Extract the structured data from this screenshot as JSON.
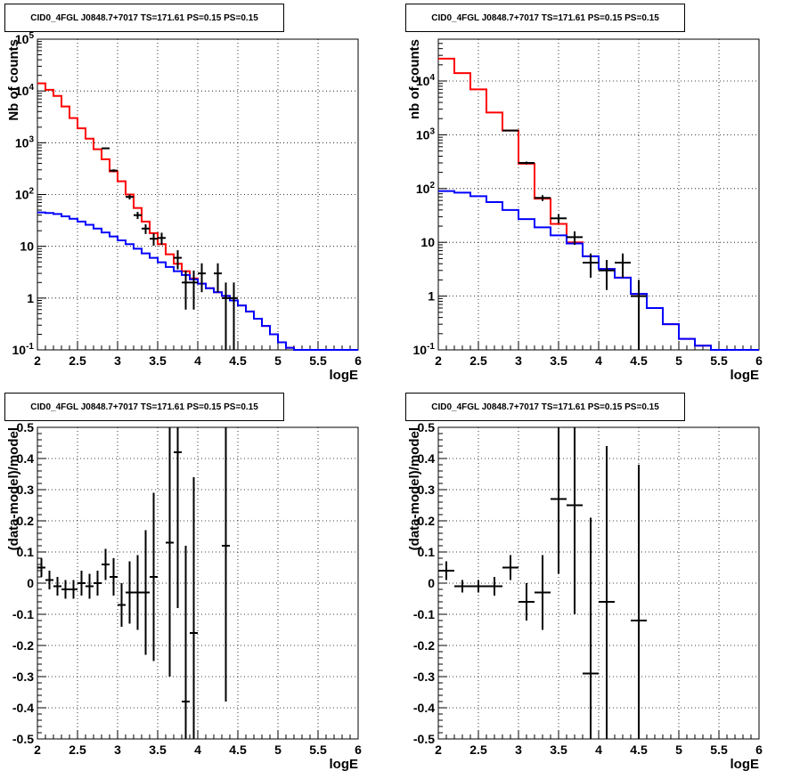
{
  "chart_data": [
    {
      "type": "line",
      "title": "CID0_4FGL J0848.7+7017 TS=171.61 PS=0.15 PS=0.15",
      "xlabel": "logE",
      "ylabel": "Nb of counts",
      "xlim": [
        2,
        6
      ],
      "ylim": [
        0.1,
        100000
      ],
      "yscale": "log",
      "grid": true,
      "x_ticks": [
        "2",
        "2.5",
        "3",
        "3.5",
        "4",
        "4.5",
        "5",
        "5.5",
        "6"
      ],
      "y_ticks": [
        "10^-1",
        "1",
        "10",
        "10^2",
        "10^3",
        "10^4",
        "10^5"
      ],
      "series": [
        {
          "color": "#ff0000",
          "style": "step",
          "bin_width": 0.1,
          "x": [
            2.05,
            2.15,
            2.25,
            2.35,
            2.45,
            2.55,
            2.65,
            2.75,
            2.85,
            2.95,
            3.05,
            3.15,
            3.25,
            3.35,
            3.45,
            3.55,
            3.65,
            3.75,
            3.85,
            3.95,
            4.05,
            4.15,
            4.25,
            4.35,
            4.45,
            4.55,
            4.65,
            4.75,
            4.85,
            4.95,
            5.05,
            5.15,
            5.25,
            5.35,
            5.45,
            5.55,
            5.65,
            5.75,
            5.85,
            5.95
          ],
          "values": [
            14000,
            10500,
            8000,
            5000,
            3000,
            1900,
            1200,
            750,
            480,
            280,
            180,
            100,
            55,
            30,
            18,
            11,
            7,
            4.6,
            3.3,
            2.4,
            1.9,
            1.55,
            1.3,
            1.1,
            0.9,
            0.72,
            0.55,
            0.4,
            0.29,
            0.2,
            0.14,
            0.11,
            0.1,
            0.1,
            0.1,
            0.1,
            0.1,
            0.1,
            0.1,
            0.1
          ]
        },
        {
          "color": "#0000ff",
          "style": "step",
          "bin_width": 0.1,
          "x": [
            2.05,
            2.15,
            2.25,
            2.35,
            2.45,
            2.55,
            2.65,
            2.75,
            2.85,
            2.95,
            3.05,
            3.15,
            3.25,
            3.35,
            3.45,
            3.55,
            3.65,
            3.75,
            3.85,
            3.95,
            4.05,
            4.15,
            4.25,
            4.35,
            4.45,
            4.55,
            4.65,
            4.75,
            4.85,
            4.95,
            5.05,
            5.15,
            5.25,
            5.35,
            5.45,
            5.55,
            5.65,
            5.75,
            5.85,
            5.95
          ],
          "values": [
            45,
            44,
            42,
            38,
            34,
            30,
            26,
            22,
            18.5,
            15.5,
            13,
            11,
            9,
            7.3,
            6,
            4.9,
            4,
            3.3,
            2.8,
            2.3,
            1.9,
            1.55,
            1.3,
            1.1,
            0.9,
            0.72,
            0.55,
            0.4,
            0.29,
            0.2,
            0.14,
            0.11,
            0.1,
            0.1,
            0.1,
            0.1,
            0.1,
            0.1,
            0.1,
            0.1
          ]
        },
        {
          "color": "#000000",
          "style": "errorbar",
          "x_err": 0.05,
          "x": [
            2.85,
            2.95,
            3.15,
            3.25,
            3.35,
            3.45,
            3.55,
            3.75,
            3.85,
            3.95,
            4.05,
            4.25,
            4.35,
            4.45
          ],
          "values": [
            780,
            290,
            90,
            40,
            22,
            14,
            14.5,
            6,
            2,
            2,
            3,
            3,
            1,
            1
          ],
          "err_low": [
            28,
            17,
            9.5,
            6.3,
            4.7,
            3.7,
            3.8,
            2.4,
            1.4,
            1.4,
            1.7,
            1.7,
            1,
            1
          ],
          "err_high": [
            28,
            17,
            9.5,
            6.3,
            4.7,
            3.7,
            3.8,
            2.4,
            1.4,
            1.4,
            1.7,
            1.7,
            1,
            1
          ]
        }
      ]
    },
    {
      "type": "line",
      "title": "CID0_4FGL J0848.7+7017 TS=171.61 PS=0.15 PS=0.15",
      "xlabel": "logE",
      "ylabel": "nb of counts",
      "xlim": [
        2,
        6
      ],
      "ylim": [
        0.1,
        60000
      ],
      "yscale": "log",
      "grid": true,
      "x_ticks": [
        "2",
        "2.5",
        "3",
        "3.5",
        "4",
        "4.5",
        "5",
        "5.5",
        "6"
      ],
      "y_ticks": [
        "10^-1",
        "1",
        "10",
        "10^2",
        "10^3",
        "10^4"
      ],
      "series": [
        {
          "color": "#ff0000",
          "style": "step",
          "bin_width": 0.2,
          "x": [
            2.1,
            2.3,
            2.5,
            2.7,
            2.9,
            3.1,
            3.3,
            3.5,
            3.7,
            3.9,
            4.1,
            4.3,
            4.5,
            4.7,
            4.9,
            5.1,
            5.3,
            5.5,
            5.7,
            5.9
          ],
          "values": [
            26000,
            14000,
            7000,
            2600,
            1200,
            290,
            65,
            22,
            10,
            5.5,
            3.2,
            2.2,
            1.1,
            0.6,
            0.3,
            0.16,
            0.12,
            0.1,
            0.1,
            0.1
          ]
        },
        {
          "color": "#0000ff",
          "style": "step",
          "bin_width": 0.2,
          "x": [
            2.1,
            2.3,
            2.5,
            2.7,
            2.9,
            3.1,
            3.3,
            3.5,
            3.7,
            3.9,
            4.1,
            4.3,
            4.5,
            4.7,
            4.9,
            5.1,
            5.3,
            5.5,
            5.7,
            5.9
          ],
          "values": [
            90,
            84,
            72,
            56,
            40,
            27,
            19,
            13.5,
            9.5,
            5.5,
            3.2,
            2.2,
            1.1,
            0.6,
            0.3,
            0.16,
            0.12,
            0.1,
            0.1,
            0.1
          ]
        },
        {
          "color": "#000000",
          "style": "errorbar",
          "x_err": 0.1,
          "x": [
            2.9,
            3.1,
            3.3,
            3.5,
            3.7,
            3.9,
            4.1,
            4.3,
            4.5
          ],
          "values": [
            1200,
            300,
            67,
            28,
            12.5,
            4.2,
            3,
            4.2,
            1
          ],
          "err_low": [
            35,
            17,
            8.2,
            5.3,
            3.5,
            2,
            1.7,
            2,
            1
          ],
          "err_high": [
            35,
            17,
            8.2,
            5.3,
            3.5,
            2,
            1.7,
            2,
            1
          ]
        }
      ]
    },
    {
      "type": "scatter",
      "title": "CID0_4FGL J0848.7+7017 TS=171.61 PS=0.15 PS=0.15",
      "xlabel": "logE",
      "ylabel": "(data-model)/model",
      "xlim": [
        2,
        6
      ],
      "ylim": [
        -0.5,
        0.5
      ],
      "grid": true,
      "x_ticks": [
        "2",
        "2.5",
        "3",
        "3.5",
        "4",
        "4.5",
        "5",
        "5.5",
        "6"
      ],
      "y_ticks": [
        "-0.5",
        "-0.4",
        "-0.3",
        "-0.2",
        "-0.1",
        "0",
        "0.1",
        "0.2",
        "0.3",
        "0.4",
        "0.5"
      ],
      "series": [
        {
          "color": "#000000",
          "style": "errorbar",
          "x_err": 0.05,
          "x": [
            2.05,
            2.15,
            2.25,
            2.35,
            2.45,
            2.55,
            2.65,
            2.75,
            2.85,
            2.95,
            3.05,
            3.15,
            3.25,
            3.35,
            3.45,
            3.65,
            3.75,
            3.85,
            3.95,
            4.35
          ],
          "values": [
            0.05,
            0.01,
            -0.01,
            -0.02,
            -0.02,
            0.0,
            -0.01,
            0.0,
            0.06,
            0.02,
            -0.07,
            -0.03,
            -0.03,
            -0.03,
            0.02,
            0.13,
            0.42,
            -0.38,
            -0.16,
            0.12
          ],
          "err_low": [
            0.03,
            0.03,
            0.03,
            0.03,
            0.03,
            0.04,
            0.04,
            0.04,
            0.05,
            0.06,
            0.07,
            0.1,
            0.12,
            0.2,
            0.27,
            0.43,
            0.5,
            0.5,
            0.5,
            0.5
          ],
          "err_high": [
            0.03,
            0.03,
            0.03,
            0.03,
            0.03,
            0.04,
            0.04,
            0.04,
            0.05,
            0.06,
            0.07,
            0.1,
            0.12,
            0.2,
            0.27,
            0.43,
            0.5,
            0.5,
            0.5,
            0.5
          ]
        }
      ]
    },
    {
      "type": "scatter",
      "title": "CID0_4FGL J0848.7+7017 TS=171.61 PS=0.15 PS=0.15",
      "xlabel": "logE",
      "ylabel": "(data-model)/model",
      "xlim": [
        2,
        6
      ],
      "ylim": [
        -0.5,
        0.5
      ],
      "grid": true,
      "x_ticks": [
        "2",
        "2.5",
        "3",
        "3.5",
        "4",
        "4.5",
        "5",
        "5.5",
        "6"
      ],
      "y_ticks": [
        "-0.5",
        "-0.4",
        "-0.3",
        "-0.2",
        "-0.1",
        "0",
        "0.1",
        "0.2",
        "0.3",
        "0.4",
        "0.5"
      ],
      "series": [
        {
          "color": "#000000",
          "style": "errorbar",
          "x_err": 0.1,
          "x": [
            2.1,
            2.3,
            2.5,
            2.7,
            2.9,
            3.1,
            3.3,
            3.5,
            3.7,
            3.9,
            4.1,
            4.5
          ],
          "values": [
            0.04,
            -0.01,
            -0.01,
            -0.01,
            0.05,
            -0.06,
            -0.03,
            0.27,
            0.25,
            -0.29,
            -0.06,
            -0.12
          ],
          "err_low": [
            0.03,
            0.02,
            0.02,
            0.03,
            0.04,
            0.06,
            0.12,
            0.24,
            0.35,
            0.5,
            0.5,
            0.5
          ],
          "err_high": [
            0.03,
            0.02,
            0.02,
            0.03,
            0.04,
            0.06,
            0.12,
            0.24,
            0.35,
            0.5,
            0.5,
            0.5
          ]
        }
      ]
    }
  ]
}
